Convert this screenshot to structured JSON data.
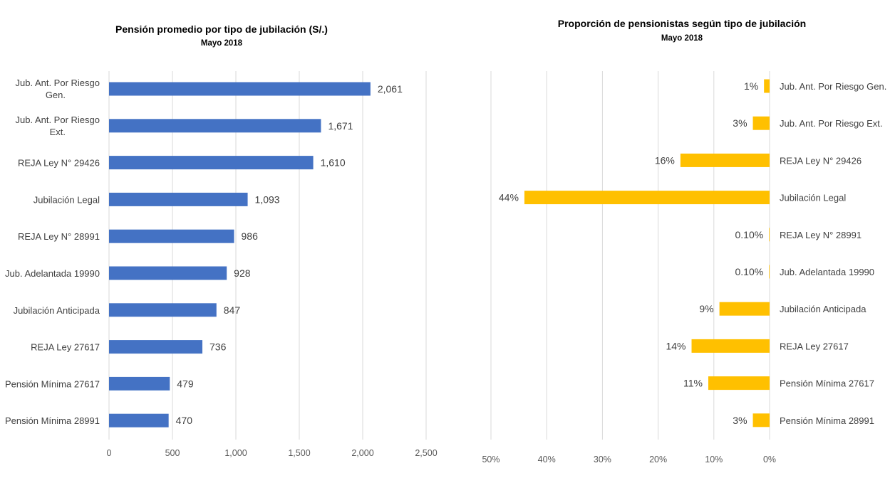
{
  "chart_data": [
    {
      "type": "bar",
      "orientation": "horizontal",
      "title": "Pensión promedio por tipo de jubilación (S/.)",
      "subtitle": "Mayo 2018",
      "categories": [
        "Jub. Ant. Por Riesgo Gen.",
        "Jub. Ant. Por Riesgo Ext.",
        "REJA Ley N° 29426",
        "Jubilación Legal",
        "REJA Ley N° 28991",
        "Jub. Adelantada 19990",
        "Jubilación Anticipada",
        "REJA Ley 27617",
        "Pensión Mínima 27617",
        "Pensión Mínima 28991"
      ],
      "category_lines": [
        [
          "Jub. Ant. Por Riesgo",
          "Gen."
        ],
        [
          "Jub. Ant. Por Riesgo",
          "Ext."
        ],
        [
          "REJA Ley N° 29426"
        ],
        [
          "Jubilación Legal"
        ],
        [
          "REJA Ley N° 28991"
        ],
        [
          "Jub. Adelantada 19990"
        ],
        [
          "Jubilación Anticipada"
        ],
        [
          "REJA Ley 27617"
        ],
        [
          "Pensión Mínima 27617"
        ],
        [
          "Pensión Mínima 28991"
        ]
      ],
      "values": [
        2061,
        1671,
        1610,
        1093,
        986,
        928,
        847,
        736,
        479,
        470
      ],
      "data_labels": [
        "2,061",
        "1,671",
        "1,610",
        "1,093",
        "986",
        "928",
        "847",
        "736",
        "479",
        "470"
      ],
      "xlim": [
        0,
        2500
      ],
      "ticks": [
        0,
        500,
        1000,
        1500,
        2000,
        2500
      ],
      "tick_labels": [
        "0",
        "500",
        "1,000",
        "1,500",
        "2,000",
        "2,500"
      ],
      "grid": true,
      "color": "#4472C4"
    },
    {
      "type": "bar",
      "orientation": "horizontal-reversed",
      "title": "Proporción de pensionistas según tipo de jubilación",
      "subtitle": "Mayo 2018",
      "categories": [
        "Jub. Ant. Por Riesgo Gen.",
        "Jub. Ant. Por Riesgo Ext.",
        "REJA Ley N° 29426",
        "Jubilación Legal",
        "REJA Ley N° 28991",
        "Jub. Adelantada 19990",
        "Jubilación Anticipada",
        "REJA Ley 27617",
        "Pensión Mínima 27617",
        "Pensión Mínima 28991"
      ],
      "values": [
        1,
        3,
        16,
        44,
        0.1,
        0.1,
        9,
        14,
        11,
        3
      ],
      "data_labels": [
        "1%",
        "3%",
        "16%",
        "44%",
        "0.10%",
        "0.10%",
        "9%",
        "14%",
        "11%",
        "3%"
      ],
      "xlim": [
        0,
        50
      ],
      "ticks": [
        50,
        40,
        30,
        20,
        10,
        0
      ],
      "tick_labels": [
        "50%",
        "40%",
        "30%",
        "20%",
        "10%",
        "0%"
      ],
      "grid": true,
      "color": "#FFC000"
    }
  ]
}
